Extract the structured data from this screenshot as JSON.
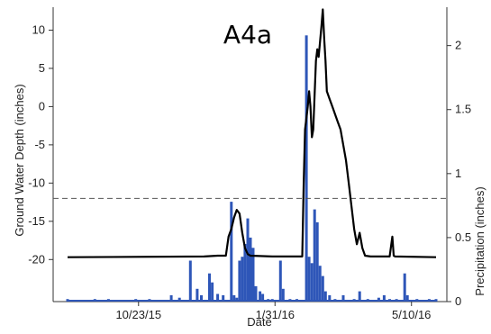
{
  "chart_data": {
    "type": "line",
    "title": "A4a",
    "xlabel": "Date",
    "ylabel_left": "Ground Water Depth (inches)",
    "ylabel_right": "Precipitation (inches)",
    "x_tick_labels": [
      "10/23/15",
      "1/31/16",
      "5/10/16"
    ],
    "left_y_ticks": [
      10,
      5,
      0,
      -5,
      -10,
      -15,
      -20
    ],
    "right_y_ticks": [
      "2",
      "1.5",
      "1",
      "0.5",
      "0"
    ],
    "left_ylim": [
      -25.5,
      13
    ],
    "right_ylim": [
      0,
      2.3
    ],
    "reference_line": {
      "axis": "left",
      "value": -12,
      "style": "dashed"
    },
    "x_unit": "days since 2015-09-01",
    "x_range": [
      0,
      270
    ],
    "x_tick_positions": [
      52,
      152,
      252
    ],
    "series": [
      {
        "name": "Ground Water Depth",
        "axis": "left",
        "type": "line",
        "color": "#000000",
        "points": [
          [
            0,
            -19.7
          ],
          [
            100,
            -19.6
          ],
          [
            110,
            -19.5
          ],
          [
            116,
            -19.5
          ],
          [
            118,
            -17
          ],
          [
            120,
            -16
          ],
          [
            122,
            -14.5
          ],
          [
            124,
            -13.5
          ],
          [
            126,
            -14
          ],
          [
            128,
            -16.5
          ],
          [
            130,
            -18.5
          ],
          [
            132,
            -19.3
          ],
          [
            134,
            -19.5
          ],
          [
            150,
            -19.6
          ],
          [
            165,
            -19.6
          ],
          [
            172,
            -19.6
          ],
          [
            173,
            -10
          ],
          [
            174,
            -3
          ],
          [
            176,
            0
          ],
          [
            177,
            2
          ],
          [
            178,
            0
          ],
          [
            179,
            -4
          ],
          [
            180,
            -3
          ],
          [
            182,
            6
          ],
          [
            183,
            7.5
          ],
          [
            184,
            6.5
          ],
          [
            186,
            10.5
          ],
          [
            187,
            12.7
          ],
          [
            188,
            9
          ],
          [
            189,
            6
          ],
          [
            190,
            2
          ],
          [
            192,
            1
          ],
          [
            194,
            0
          ],
          [
            196,
            -1
          ],
          [
            198,
            -2
          ],
          [
            200,
            -3
          ],
          [
            202,
            -5
          ],
          [
            204,
            -7
          ],
          [
            206,
            -10
          ],
          [
            208,
            -13
          ],
          [
            210,
            -16
          ],
          [
            212,
            -18
          ],
          [
            214,
            -16.5
          ],
          [
            216,
            -18.5
          ],
          [
            218,
            -19.5
          ],
          [
            222,
            -19.6
          ],
          [
            230,
            -19.6
          ],
          [
            236,
            -19.6
          ],
          [
            238,
            -17
          ],
          [
            239,
            -19.5
          ],
          [
            240,
            -19.6
          ],
          [
            270,
            -19.7
          ]
        ]
      },
      {
        "name": "Precipitation",
        "axis": "right",
        "type": "bar",
        "color": "#2e56b8",
        "bars": [
          [
            0,
            0.02
          ],
          [
            10,
            0.01
          ],
          [
            20,
            0.02
          ],
          [
            30,
            0.02
          ],
          [
            40,
            0.01
          ],
          [
            50,
            0.02
          ],
          [
            60,
            0.02
          ],
          [
            70,
            0.01
          ],
          [
            76,
            0.05
          ],
          [
            82,
            0.03
          ],
          [
            90,
            0.32
          ],
          [
            95,
            0.1
          ],
          [
            98,
            0.05
          ],
          [
            104,
            0.22
          ],
          [
            106,
            0.15
          ],
          [
            110,
            0.06
          ],
          [
            114,
            0.05
          ],
          [
            120,
            0.78
          ],
          [
            122,
            0.05
          ],
          [
            124,
            0.03
          ],
          [
            126,
            0.32
          ],
          [
            128,
            0.35
          ],
          [
            130,
            0.45
          ],
          [
            132,
            0.65
          ],
          [
            134,
            0.5
          ],
          [
            136,
            0.42
          ],
          [
            138,
            0.12
          ],
          [
            141,
            0.08
          ],
          [
            143,
            0.06
          ],
          [
            147,
            0.02
          ],
          [
            150,
            0.02
          ],
          [
            156,
            0.32
          ],
          [
            158,
            0.1
          ],
          [
            163,
            0.02
          ],
          [
            168,
            0.02
          ],
          [
            175,
            2.08
          ],
          [
            177,
            0.35
          ],
          [
            179,
            0.3
          ],
          [
            181,
            0.72
          ],
          [
            183,
            0.62
          ],
          [
            185,
            0.28
          ],
          [
            187,
            0.2
          ],
          [
            189,
            0.08
          ],
          [
            192,
            0.05
          ],
          [
            196,
            0.02
          ],
          [
            202,
            0.05
          ],
          [
            210,
            0.02
          ],
          [
            214,
            0.08
          ],
          [
            220,
            0.02
          ],
          [
            228,
            0.03
          ],
          [
            232,
            0.05
          ],
          [
            236,
            0.02
          ],
          [
            241,
            0.02
          ],
          [
            247,
            0.22
          ],
          [
            249,
            0.05
          ],
          [
            256,
            0.02
          ],
          [
            265,
            0.02
          ],
          [
            270,
            0.02
          ]
        ]
      }
    ],
    "grid": false,
    "legend": false
  }
}
